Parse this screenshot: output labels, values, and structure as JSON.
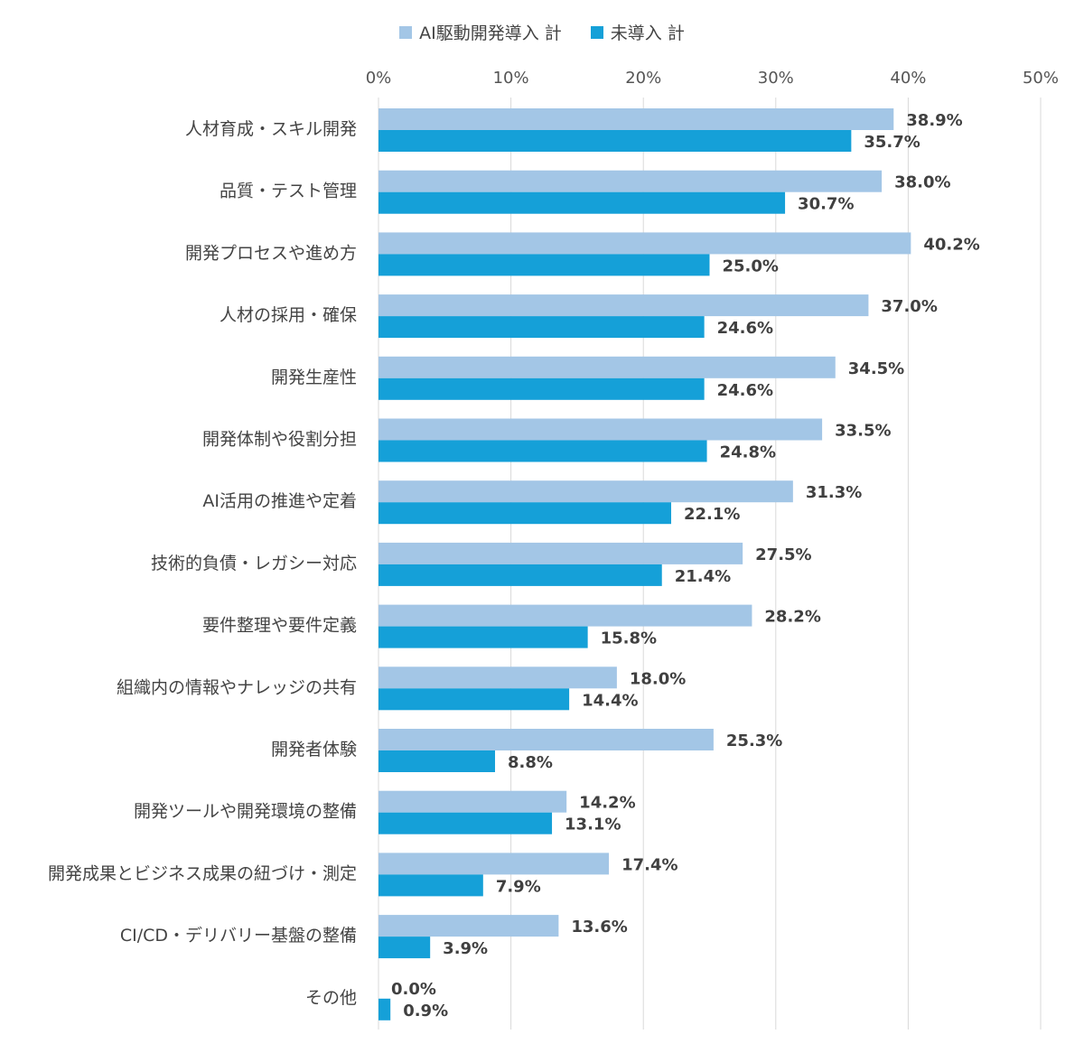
{
  "chart_data": {
    "type": "bar",
    "orientation": "horizontal",
    "legend_position": "top",
    "grid": true,
    "xlim": [
      0,
      50
    ],
    "xticks": [
      "0%",
      "10%",
      "20%",
      "30%",
      "40%",
      "50%"
    ],
    "categories": [
      "人材育成・スキル開発",
      "品質・テスト管理",
      "開発プロセスや進め方",
      "人材の採用・確保",
      "開発生産性",
      "開発体制や役割分担",
      "AI活用の推進や定着",
      "技術的負債・レガシー対応",
      "要件整理や要件定義",
      "組織内の情報やナレッジの共有",
      "開発者体験",
      "開発ツールや開発環境の整備",
      "開発成果とビジネス成果の紐づけ・測定",
      "CI/CD・デリバリー基盤の整備",
      "その他"
    ],
    "series": [
      {
        "name": "AI駆動開発導入 計",
        "color": "#a3c6e6",
        "values": [
          38.9,
          38.0,
          40.2,
          37.0,
          34.5,
          33.5,
          31.3,
          27.5,
          28.2,
          18.0,
          25.3,
          14.2,
          17.4,
          13.6,
          0.0
        ],
        "labels": [
          "38.9%",
          "38.0%",
          "40.2%",
          "37.0%",
          "34.5%",
          "33.5%",
          "31.3%",
          "27.5%",
          "28.2%",
          "18.0%",
          "25.3%",
          "14.2%",
          "17.4%",
          "13.6%",
          "0.0%"
        ]
      },
      {
        "name": "未導入 計",
        "color": "#15a0d8",
        "values": [
          35.7,
          30.7,
          25.0,
          24.6,
          24.6,
          24.8,
          22.1,
          21.4,
          15.8,
          14.4,
          8.8,
          13.1,
          7.9,
          3.9,
          0.9
        ],
        "labels": [
          "35.7%",
          "30.7%",
          "25.0%",
          "24.6%",
          "24.6%",
          "24.8%",
          "22.1%",
          "21.4%",
          "15.8%",
          "14.4%",
          "8.8%",
          "13.1%",
          "7.9%",
          "3.9%",
          "0.9%"
        ]
      }
    ]
  }
}
